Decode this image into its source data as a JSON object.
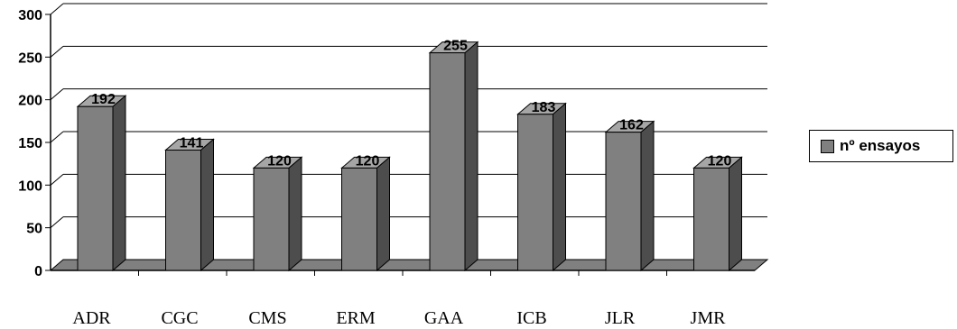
{
  "chart_data": {
    "type": "bar",
    "categories": [
      "ADR",
      "CGC",
      "CMS",
      "ERM",
      "GAA",
      "ICB",
      "JLR",
      "JMR"
    ],
    "series": [
      {
        "name": "nº ensayos",
        "values": [
          192,
          141,
          120,
          120,
          255,
          183,
          162,
          120
        ]
      }
    ],
    "data_labels": [
      "192",
      "141",
      "120",
      "120",
      "255",
      "183",
      "162",
      "120"
    ],
    "y_ticks": [
      "0",
      "50",
      "100",
      "150",
      "200",
      "250",
      "300"
    ],
    "ylim": [
      0,
      300
    ],
    "grid": true,
    "legend_position": "right",
    "style": "3d",
    "colors": {
      "bar_front": "#808080",
      "bar_top": "#a6a6a6",
      "bar_side": "#4d4d4d",
      "axis": "#000000"
    }
  },
  "legend": {
    "label": "nº ensayos"
  }
}
